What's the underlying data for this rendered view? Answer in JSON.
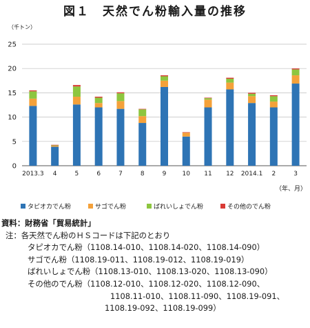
{
  "figure": {
    "title": "図１　天然でん粉輸入量の推移",
    "unit_label": "（千トン）",
    "x_unit_label": "（年、月）"
  },
  "chart_data": {
    "type": "bar",
    "stacked": true,
    "title": "図１　天然でん粉輸入量の推移",
    "ylabel": "（千トン）",
    "xlabel": "（年、月）",
    "ylim": [
      0,
      25
    ],
    "yticks": [
      0,
      5,
      10,
      15,
      20,
      25
    ],
    "grid": true,
    "legend_position": "bottom",
    "categories": [
      "2013.3",
      "4",
      "5",
      "6",
      "7",
      "8",
      "9",
      "10",
      "11",
      "12",
      "2014.1",
      "2",
      "3"
    ],
    "series": [
      {
        "name": "タピオカでん粉",
        "color": "#2e74b5",
        "values": [
          12.3,
          3.9,
          12.6,
          12.0,
          11.7,
          8.8,
          16.2,
          6.0,
          12.0,
          15.7,
          12.9,
          12.0,
          16.9
        ]
      },
      {
        "name": "サゴでん粉",
        "color": "#f4a13a",
        "values": [
          1.5,
          0.2,
          1.6,
          0.9,
          1.6,
          1.4,
          1.3,
          0.8,
          1.6,
          1.4,
          1.4,
          1.2,
          1.7
        ]
      },
      {
        "name": "ばれいしょでん粉",
        "color": "#8dc63f",
        "values": [
          1.5,
          0.1,
          2.1,
          1.1,
          1.6,
          1.4,
          0.9,
          0.0,
          0.3,
          0.8,
          0.5,
          1.1,
          1.2
        ]
      },
      {
        "name": "その他のでん粉",
        "color": "#d93a35",
        "values": [
          0.2,
          0.1,
          0.3,
          0.2,
          0.2,
          0.1,
          0.2,
          0.1,
          0.1,
          0.2,
          0.2,
          0.2,
          0.2
        ]
      }
    ]
  },
  "notes": {
    "source": "資料：財務省「貿易統計」",
    "note_head": "注：各天然でん粉のＨＳコードは下記のとおり",
    "tapioca": "タピオカでん粉（1108.14-010、1108.14-020、1108.14-090）",
    "sago": "サゴでん粉（1108.19-011、1108.19-012、1108.19-019）",
    "potato": "ばれいしょでん粉（1108.13-010、1108.13-020、1108.13-090）",
    "other_1": "その他のでん粉（1108.12-010、1108.12-020、1108.12-090、",
    "other_2": "1108.11-010、1108.11-090、1108.19-091、",
    "other_3": "1108.19-092、1108.19-099）"
  }
}
